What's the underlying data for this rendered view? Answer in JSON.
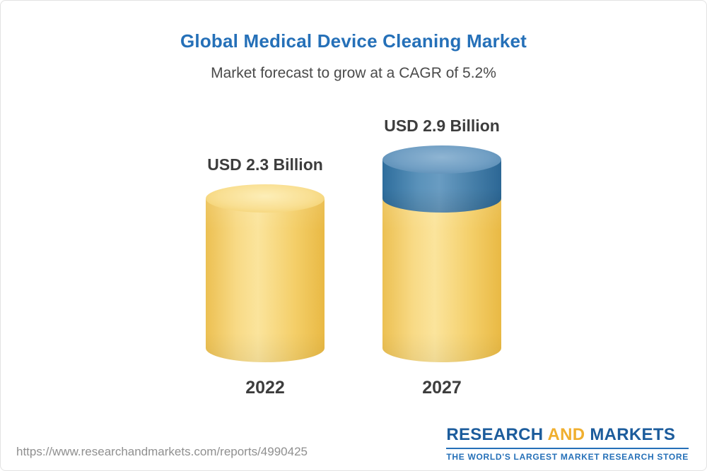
{
  "header": {
    "title": "Global Medical Device Cleaning Market",
    "subtitle": "Market forecast to grow at a CAGR of 5.2%"
  },
  "chart_data": {
    "type": "bar",
    "title": "Global Medical Device Cleaning Market",
    "subtitle": "Market forecast to grow at a CAGR of 5.2%",
    "cagr": "5.2%",
    "unit": "USD Billion",
    "categories": [
      "2022",
      "2027"
    ],
    "values": [
      2.3,
      2.9
    ],
    "value_labels": [
      "USD 2.3 Billion",
      "USD 2.9 Billion"
    ],
    "legend": "none",
    "grid": "off",
    "colors": {
      "base_segment": "#f5ce63",
      "growth_segment": "#4d83ad",
      "title_accent": "#2570b8"
    }
  },
  "footer": {
    "url": "https://www.researchandmarkets.com/reports/4990425",
    "logo": {
      "part1": "RESEARCH",
      "part2": "AND",
      "part3": "MARKETS",
      "tagline": "THE WORLD'S LARGEST MARKET RESEARCH STORE"
    }
  }
}
